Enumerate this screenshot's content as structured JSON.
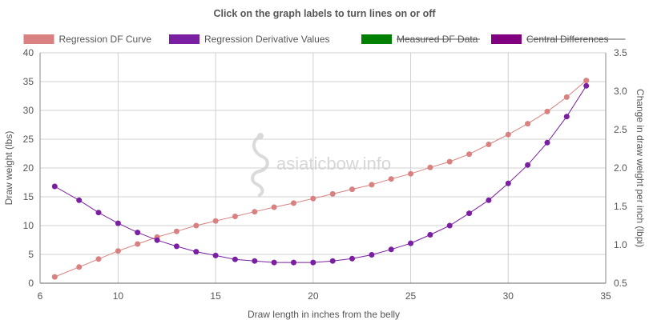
{
  "chart_data": {
    "type": "line",
    "title": "Click on the graph labels to turn lines on or off",
    "xlabel": "Draw length in inches from the belly",
    "ylabel": "Draw weight (lbs)",
    "y2label": "Change in draw weight per inch (lbpi)",
    "xlim": [
      6,
      35
    ],
    "ylim": [
      0,
      40
    ],
    "y2lim": [
      0.5,
      3.5
    ],
    "xticks": [
      "6",
      "10",
      "15",
      "20",
      "25",
      "30",
      "35"
    ],
    "yticks": [
      "0",
      "5",
      "10",
      "15",
      "20",
      "25",
      "30",
      "35",
      "40"
    ],
    "y2ticks": [
      "0.5",
      "1.0",
      "1.5",
      "2.0",
      "2.5",
      "3.0",
      "3.5"
    ],
    "grid": true,
    "legend_position": "top",
    "watermark": "asiaticbow.info",
    "series": [
      {
        "name": "Regression DF Curve",
        "axis": "left",
        "color": "#d98080",
        "visible": true,
        "x": [
          6.75,
          8,
          9,
          10,
          11,
          12,
          13,
          14,
          15,
          16,
          17,
          18,
          19,
          20,
          21,
          22,
          23,
          24,
          25,
          26,
          27,
          28,
          29,
          30,
          31,
          32,
          33,
          34
        ],
        "values": [
          1.1,
          2.8,
          4.2,
          5.6,
          6.8,
          8.0,
          9.0,
          10.0,
          10.8,
          11.6,
          12.4,
          13.2,
          13.9,
          14.7,
          15.5,
          16.3,
          17.1,
          18.1,
          19.0,
          20.1,
          21.1,
          22.4,
          24.1,
          25.8,
          27.7,
          29.8,
          32.3,
          35.2
        ]
      },
      {
        "name": "Regression Derivative Values",
        "axis": "right",
        "color": "#7a1fa2",
        "visible": true,
        "x": [
          6.75,
          8,
          9,
          10,
          11,
          12,
          13,
          14,
          15,
          16,
          17,
          18,
          19,
          20,
          21,
          22,
          23,
          24,
          25,
          26,
          27,
          28,
          29,
          30,
          31,
          32,
          33,
          34
        ],
        "values": [
          1.76,
          1.58,
          1.42,
          1.28,
          1.16,
          1.06,
          0.98,
          0.91,
          0.86,
          0.81,
          0.79,
          0.77,
          0.77,
          0.77,
          0.79,
          0.82,
          0.87,
          0.94,
          1.02,
          1.13,
          1.25,
          1.41,
          1.58,
          1.8,
          2.04,
          2.33,
          2.67,
          3.07
        ]
      },
      {
        "name": "Measured DF Data",
        "axis": "left",
        "color": "#008000",
        "visible": false,
        "x": [],
        "values": []
      },
      {
        "name": "Central Differences",
        "axis": "right",
        "color": "#800080",
        "visible": false,
        "x": [],
        "values": []
      }
    ]
  }
}
